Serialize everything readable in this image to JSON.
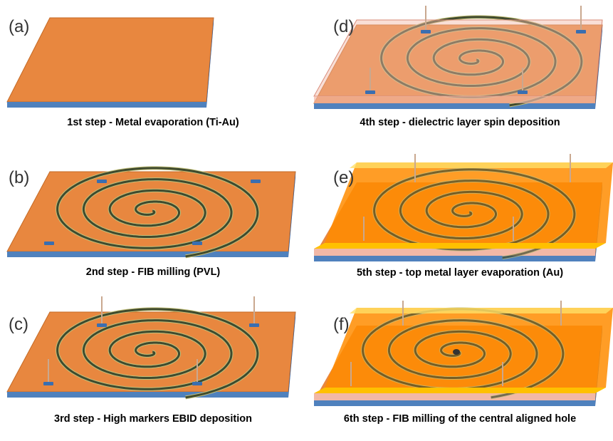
{
  "panels": [
    {
      "label": "(a)",
      "caption": "1st step - Metal evaporation (Ti-Au)"
    },
    {
      "label": "(b)",
      "caption": "2nd step - FIB milling (PVL)"
    },
    {
      "label": "(c)",
      "caption": "3rd step - High markers EBID deposition"
    },
    {
      "label": "(d)",
      "caption": "4th step - dielectric layer spin deposition"
    },
    {
      "label": "(e)",
      "caption": "5th step - top metal layer evaporation (Au)"
    },
    {
      "label": "(f)",
      "caption": "6th step - FIB milling of the central aligned hole"
    }
  ],
  "colors": {
    "gold_layer": "#E8873F",
    "substrate": "#4F81BD",
    "dielectric": "#F2B8A6",
    "top_gold": "#FFC000",
    "groove": "#3F4A2E",
    "marker": "#3A6EB0"
  }
}
